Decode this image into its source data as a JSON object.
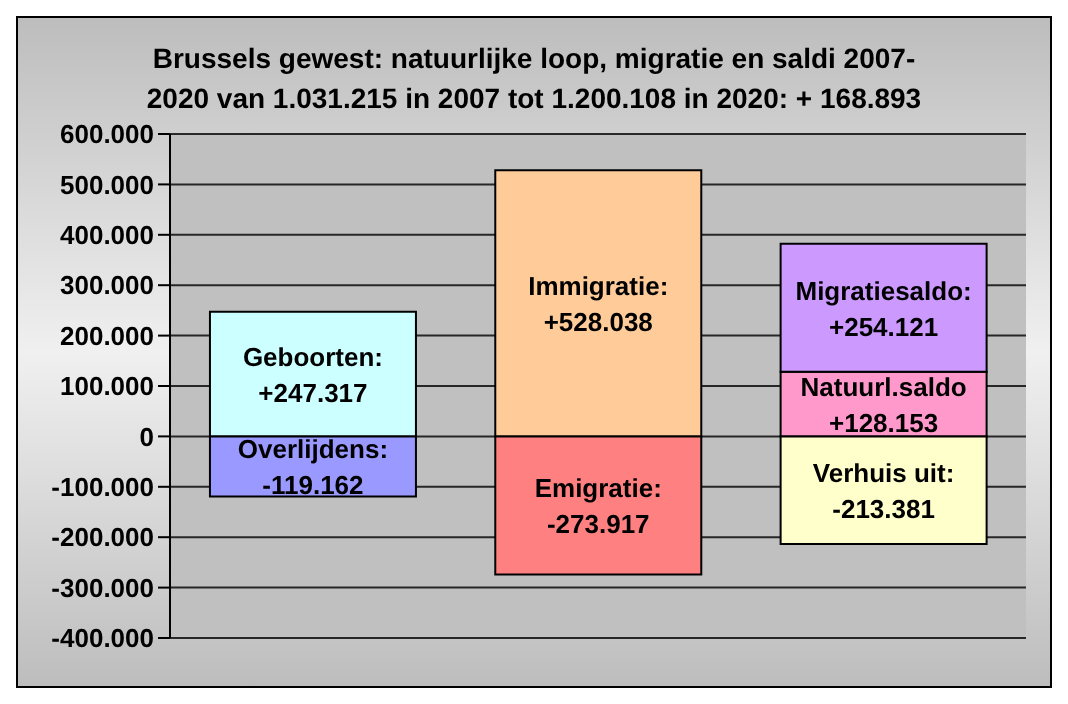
{
  "chart_data": {
    "type": "bar",
    "title": "Brussels gewest: natuurlijke loop, migratie en saldi 2007-\n2020  van 1.031.215 in 2007 tot 1.200.108 in 2020: + 168.893",
    "categories": [
      null,
      null,
      null
    ],
    "stacked": true,
    "series": [
      {
        "colors": [
          "#ccffff",
          "#ffcc99",
          "#ff99cc"
        ],
        "values": [
          247317,
          528038,
          128153
        ],
        "value_labels": [
          "Geboorten:\n+247.317",
          "Immigratie:\n+528.038",
          "Natuurl.saldo\n+128.153"
        ]
      },
      {
        "colors": [
          "#9999ff",
          "#ff8080",
          "#ffffcc"
        ],
        "values": [
          -119162,
          -273917,
          -213381
        ],
        "value_labels": [
          "Overlijdens:\n-119.162",
          "Emigratie:\n-273.917",
          "Verhuis uit:\n-213.381"
        ]
      },
      {
        "colors": [
          null,
          null,
          "#cc99ff"
        ],
        "values": [
          null,
          null,
          254121
        ],
        "value_labels": [
          null,
          null,
          "Migratiesaldo:\n+254.121"
        ]
      }
    ],
    "ylim": [
      -400000,
      600000
    ],
    "yticks": [
      {
        "value": -400000,
        "label": "-400.000"
      },
      {
        "value": -300000,
        "label": "-300.000"
      },
      {
        "value": -200000,
        "label": "-200.000"
      },
      {
        "value": -100000,
        "label": "-100.000"
      },
      {
        "value": 0,
        "label": "0"
      },
      {
        "value": 100000,
        "label": "100.000"
      },
      {
        "value": 200000,
        "label": "200.000"
      },
      {
        "value": 300000,
        "label": "300.000"
      },
      {
        "value": 400000,
        "label": "400.000"
      },
      {
        "value": 500000,
        "label": "500.000"
      },
      {
        "value": 600000,
        "label": "600.000"
      }
    ],
    "grid": "y"
  }
}
